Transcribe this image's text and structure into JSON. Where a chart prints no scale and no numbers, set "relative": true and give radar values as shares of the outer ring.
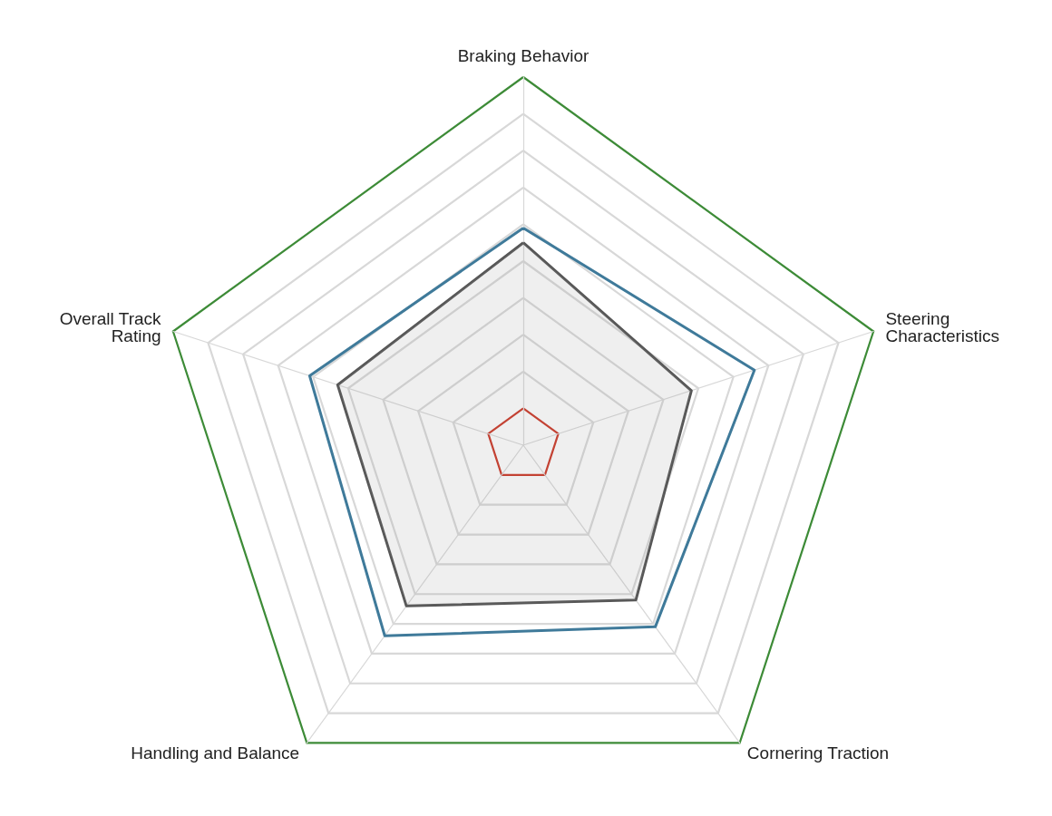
{
  "chart_data": {
    "type": "radar",
    "relative": true,
    "categories": [
      "Braking Behavior",
      "Steering Characteristics",
      "Cornering Traction",
      "Handling and Balance",
      "Overall Track Rating"
    ],
    "series": [
      {
        "color": "#3f7a9a",
        "values": [
          0.59,
          0.66,
          0.61,
          0.64,
          0.61
        ]
      },
      {
        "color": "#555555",
        "values": [
          0.55,
          0.48,
          0.52,
          0.54,
          0.53
        ]
      }
    ],
    "marker": "none"
  }
}
